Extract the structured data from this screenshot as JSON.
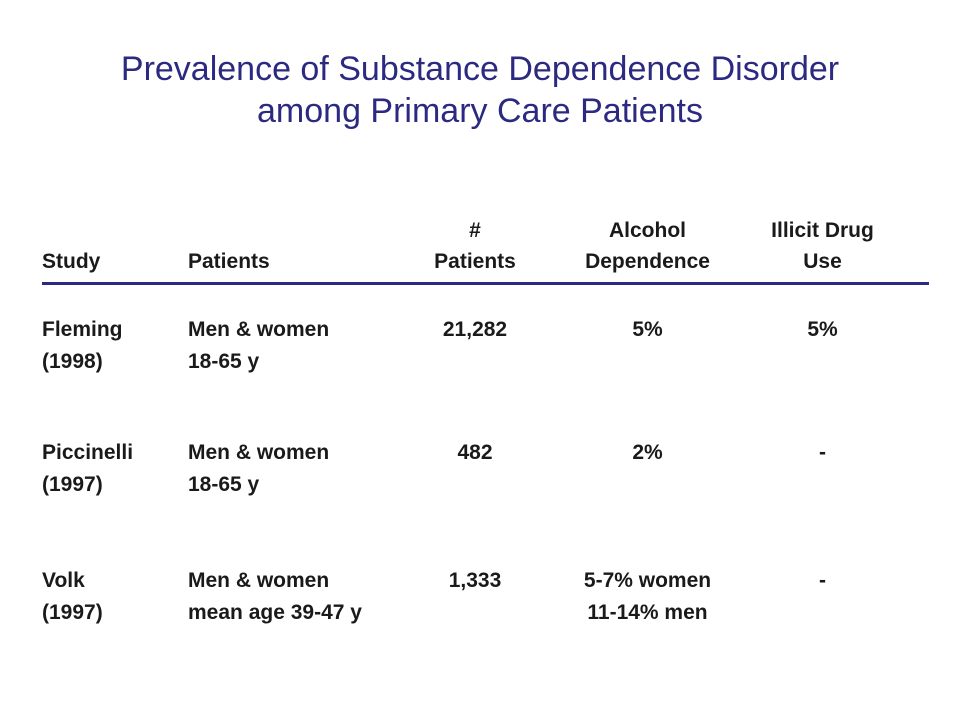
{
  "title": {
    "line1": "Prevalence of Substance Dependence Disorder",
    "line2": "among Primary Care Patients"
  },
  "header": {
    "study": "Study",
    "patients": "Patients",
    "num_patients_line1": "#",
    "num_patients_line2": "Patients",
    "alcohol_line1": "Alcohol",
    "alcohol_line2": "Dependence",
    "illicit_line1": "Illicit Drug",
    "illicit_line2": "Use"
  },
  "rows": [
    {
      "study_line1": "Fleming",
      "study_line2": "(1998)",
      "patients_line1": "Men & women",
      "patients_line2": "18-65 y",
      "num_patients": "21,282",
      "alcohol_line1": "5%",
      "alcohol_line2": "",
      "illicit": "5%"
    },
    {
      "study_line1": "Piccinelli",
      "study_line2": "(1997)",
      "patients_line1": "Men & women",
      "patients_line2": "18-65 y",
      "num_patients": "482",
      "alcohol_line1": "2%",
      "alcohol_line2": "",
      "illicit": "-"
    },
    {
      "study_line1": "Volk",
      "study_line2": "(1997)",
      "patients_line1": "Men & women",
      "patients_line2": "mean age 39-47 y",
      "num_patients": "1,333",
      "alcohol_line1": "5-7% women",
      "alcohol_line2": "11-14% men",
      "illicit": "-"
    }
  ],
  "colors": {
    "title": "#2b2a80",
    "rule": "#2b2a80",
    "text": "#1a1a1a"
  }
}
